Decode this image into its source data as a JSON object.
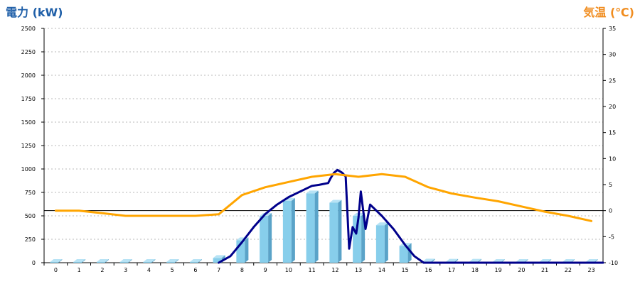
{
  "chart_data": {
    "type": "bar",
    "y_left_label": "電力 (kW)",
    "y_right_label": "気温 (℃)",
    "categories": [
      "0",
      "1",
      "2",
      "3",
      "4",
      "5",
      "6",
      "7",
      "8",
      "9",
      "10",
      "11",
      "12",
      "13",
      "14",
      "15",
      "16",
      "17",
      "18",
      "19",
      "20",
      "21",
      "22",
      "23"
    ],
    "ylim_left": [
      0,
      2500
    ],
    "yticks_left": [
      "0",
      "250",
      "500",
      "750",
      "1000",
      "1250",
      "1500",
      "1750",
      "2000",
      "2250",
      "2500"
    ],
    "ylim_right": [
      -10,
      35
    ],
    "yticks_right": [
      "-10",
      "-5",
      "0",
      "5",
      "10",
      "15",
      "20",
      "25",
      "30",
      "35"
    ],
    "grid": "horizontal dashed",
    "series": [
      {
        "type": "bar",
        "axis": "left",
        "values": [
          8,
          8,
          8,
          8,
          8,
          8,
          8,
          50,
          240,
          500,
          660,
          740,
          640,
          500,
          400,
          180,
          12,
          10,
          10,
          8,
          8,
          8,
          8,
          8
        ]
      },
      {
        "type": "line",
        "axis": "left",
        "x": [
          7,
          7.5,
          8,
          8.5,
          9,
          9.5,
          10,
          10.5,
          11,
          11.3,
          11.7,
          11.8,
          11.95,
          12.1,
          12.3,
          12.45,
          12.6,
          12.75,
          12.9,
          13.0,
          13.1,
          13.2,
          13.3,
          13.5,
          14,
          14.5,
          15,
          15.4,
          15.8,
          16,
          16.5,
          23.5
        ],
        "values": [
          0,
          70,
          220,
          380,
          520,
          620,
          700,
          760,
          820,
          830,
          850,
          900,
          960,
          990,
          960,
          920,
          150,
          380,
          310,
          480,
          760,
          560,
          360,
          620,
          500,
          360,
          190,
          70,
          0,
          0,
          0,
          0
        ]
      },
      {
        "type": "line",
        "axis": "right",
        "x": [
          0,
          1,
          2,
          3,
          4,
          5,
          6,
          7,
          8,
          9,
          10,
          11,
          12,
          13,
          14,
          15,
          16,
          17,
          18,
          19,
          20,
          21,
          22,
          23
        ],
        "values": [
          0,
          0,
          -0.5,
          -1,
          -1,
          -1,
          -1,
          -0.7,
          3,
          4.5,
          5.5,
          6.5,
          7,
          6.5,
          7,
          6.5,
          4.5,
          3.3,
          2.5,
          1.8,
          0.8,
          -0.2,
          -1,
          -2
        ]
      }
    ],
    "colors": {
      "bar_face": "#87ceeb",
      "bar_side": "#5aa3c8",
      "bar_top": "#b7e3f5",
      "power_line": "#00008b",
      "temp_line": "#ffa500",
      "left_label": "#1f5fa8",
      "right_label": "#f08c1e"
    }
  }
}
